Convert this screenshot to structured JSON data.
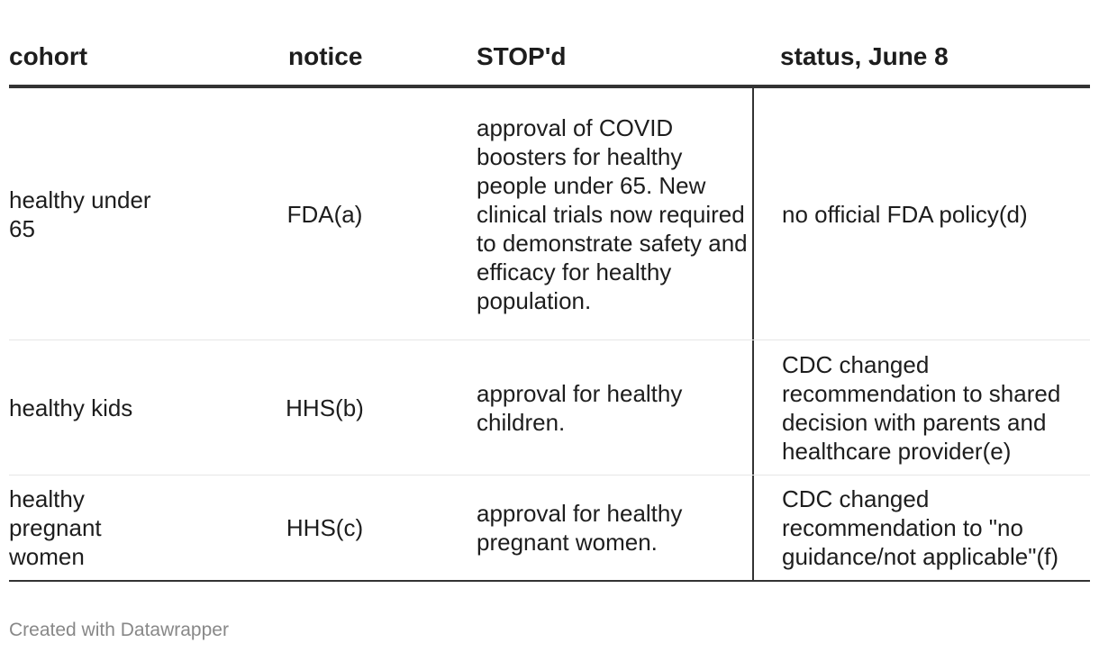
{
  "table": {
    "headers": [
      "cohort",
      "notice",
      "STOP'd",
      "status, June 8"
    ],
    "rows": [
      {
        "cohort": "healthy under 65",
        "notice": "FDA(a)",
        "stopped": "approval of COVID boosters for healthy people under 65. New clinical trials now required to demonstrate safety and efficacy for healthy population.",
        "status": "no official FDA policy(d)"
      },
      {
        "cohort": "healthy kids",
        "notice": "HHS(b)",
        "stopped": "approval for healthy children.",
        "status": "CDC changed recommendation to shared decision with parents and healthcare provider(e)"
      },
      {
        "cohort": "healthy pregnant women",
        "notice": "HHS(c)",
        "stopped": "approval for healthy pregnant women.",
        "status": "CDC changed recommendation to \"no guidance/not applicable\"(f)"
      }
    ]
  },
  "footer": {
    "credit": "Created with Datawrapper"
  }
}
